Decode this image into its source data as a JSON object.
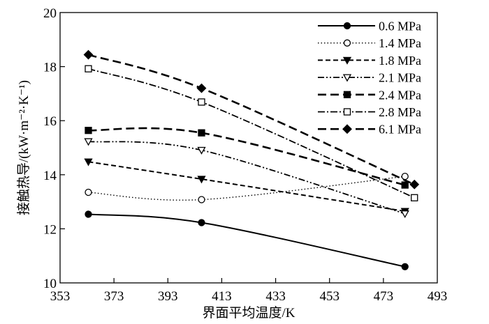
{
  "chart_data": {
    "type": "line",
    "title": "",
    "xlabel": "界面平均温度/K",
    "ylabel": "接触热导/(kW·m⁻²·K⁻¹)",
    "xlim": [
      353,
      493
    ],
    "ylim": [
      10,
      20
    ],
    "xticks": [
      353,
      373,
      393,
      413,
      433,
      453,
      473,
      493
    ],
    "yticks": [
      10,
      12,
      14,
      16,
      18,
      20
    ],
    "grid": false,
    "legend_position": "top-right",
    "series": [
      {
        "name": "0.6 MPa",
        "marker": "filled-circle",
        "dash": "solid",
        "x": [
          363.5,
          405.5,
          481
        ],
        "y": [
          12.54,
          12.23,
          10.6
        ]
      },
      {
        "name": "1.4 MPa",
        "marker": "open-circle",
        "dash": "dotted",
        "x": [
          363.5,
          405.5,
          481
        ],
        "y": [
          13.35,
          13.08,
          13.94
        ]
      },
      {
        "name": "1.8 MPa",
        "marker": "filled-triangle-down",
        "dash": "dashed",
        "x": [
          363.5,
          405.5,
          481
        ],
        "y": [
          14.48,
          13.84,
          12.65
        ]
      },
      {
        "name": "2.1 MPa",
        "marker": "open-triangle-down",
        "dash": "dash-dot-dot",
        "x": [
          363.5,
          405.5,
          481
        ],
        "y": [
          15.23,
          14.91,
          12.56
        ]
      },
      {
        "name": "2.4 MPa",
        "marker": "filled-square",
        "dash": "long-dash",
        "x": [
          363.5,
          405.5,
          481
        ],
        "y": [
          15.64,
          15.55,
          13.62
        ]
      },
      {
        "name": "2.8 MPa",
        "marker": "open-square",
        "dash": "dash-dot",
        "x": [
          363.5,
          405.5,
          484.5
        ],
        "y": [
          17.92,
          16.69,
          13.15
        ]
      },
      {
        "name": "6.1 MPa",
        "marker": "filled-diamond",
        "dash": "long-dash",
        "x": [
          363.5,
          405.5,
          484.5
        ],
        "y": [
          18.44,
          17.2,
          13.64
        ]
      }
    ]
  }
}
